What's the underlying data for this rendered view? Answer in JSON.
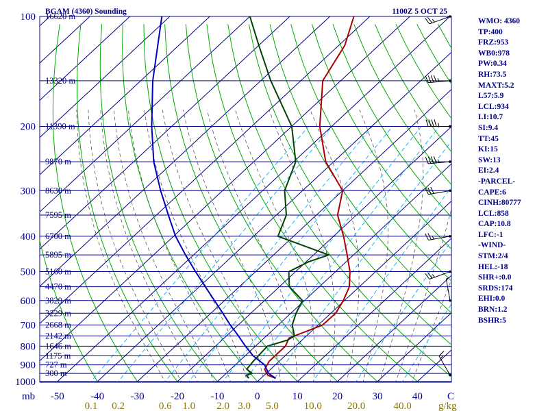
{
  "chart_data": {
    "type": "skew-t log-p sounding",
    "title": "BGAM (4360) Sounding",
    "datetime": "1100Z  5 OCT 25",
    "pressure_axis_unit": "mb",
    "pressure_ticks": [
      100,
      200,
      300,
      400,
      500,
      600,
      700,
      800,
      900,
      1000
    ],
    "temperature_axis_label": "C",
    "temperature_ticks": [
      -50,
      -40,
      -30,
      -20,
      -10,
      0,
      10,
      20,
      30,
      40
    ],
    "mixing_ratio_label": "g/kg",
    "mixing_ratio_ticks": [
      "0.1",
      "0.2",
      "0.6",
      "1.0",
      "2.0",
      "3.0",
      "5.0",
      "10.0",
      "20.0",
      "40.0"
    ],
    "height_levels": [
      {
        "p": 100,
        "label": "16620 m"
      },
      {
        "p": 150,
        "label": "13320 m"
      },
      {
        "p": 200,
        "label": "11390 m"
      },
      {
        "p": 250,
        "label": "9870 m"
      },
      {
        "p": 300,
        "label": "8630 m"
      },
      {
        "p": 350,
        "label": "7595 m"
      },
      {
        "p": 400,
        "label": "6700 m"
      },
      {
        "p": 450,
        "label": "5895 m"
      },
      {
        "p": 500,
        "label": "5160 m"
      },
      {
        "p": 550,
        "label": "4470 m"
      },
      {
        "p": 600,
        "label": "3829 m"
      },
      {
        "p": 650,
        "label": "3229 m"
      },
      {
        "p": 700,
        "label": "2668 m"
      },
      {
        "p": 750,
        "label": "2142 m"
      },
      {
        "p": 800,
        "label": "1646 m"
      },
      {
        "p": 850,
        "label": "1175 m"
      },
      {
        "p": 900,
        "label": "727 m"
      },
      {
        "p": 950,
        "label": "300 m"
      }
    ],
    "series": [
      {
        "name": "temperature",
        "color": "#aa0000",
        "points": [
          [
            980,
            3.7
          ],
          [
            960,
            0.8
          ],
          [
            925,
            -1.5
          ],
          [
            880,
            -2.5
          ],
          [
            800,
            -2.5
          ],
          [
            760,
            -3.8
          ],
          [
            700,
            1.1
          ],
          [
            650,
            1.2
          ],
          [
            600,
            -0.3
          ],
          [
            550,
            -2.5
          ],
          [
            500,
            -6.4
          ],
          [
            450,
            -11.6
          ],
          [
            400,
            -17.5
          ],
          [
            350,
            -24.7
          ],
          [
            300,
            -30.0
          ],
          [
            250,
            -42.0
          ],
          [
            200,
            -53.0
          ],
          [
            150,
            -64.5
          ],
          [
            120,
            -68.5
          ],
          [
            100,
            -74.0
          ]
        ]
      },
      {
        "name": "dewpoint",
        "color": "#004400",
        "points": [
          [
            980,
            -3.0
          ],
          [
            960,
            -4.5
          ],
          [
            950,
            -3.5
          ],
          [
            925,
            -6.0
          ],
          [
            880,
            -6.5
          ],
          [
            800,
            -7.0
          ],
          [
            770,
            -3.6
          ],
          [
            750,
            -3.0
          ],
          [
            700,
            -6.5
          ],
          [
            650,
            -8.7
          ],
          [
            600,
            -10.5
          ],
          [
            550,
            -17.5
          ],
          [
            500,
            -21.7
          ],
          [
            470,
            -19.4
          ],
          [
            450,
            -16.2
          ],
          [
            400,
            -33.9
          ],
          [
            350,
            -37.5
          ],
          [
            300,
            -44.5
          ],
          [
            250,
            -49.5
          ],
          [
            200,
            -60.0
          ],
          [
            150,
            -77.5
          ],
          [
            120,
            -90.0
          ],
          [
            100,
            -100.0
          ]
        ]
      },
      {
        "name": "parcel",
        "color": "#0000bb",
        "points": [
          [
            980,
            3.7
          ],
          [
            950,
            0.6
          ],
          [
            900,
            -2.7
          ],
          [
            850,
            -8.0
          ],
          [
            800,
            -12.5
          ],
          [
            750,
            -17.0
          ],
          [
            700,
            -22.0
          ],
          [
            650,
            -27.0
          ],
          [
            600,
            -32.5
          ],
          [
            550,
            -38.5
          ],
          [
            500,
            -45.0
          ],
          [
            450,
            -52.0
          ],
          [
            400,
            -59.5
          ],
          [
            350,
            -67.0
          ],
          [
            300,
            -75.5
          ],
          [
            250,
            -85.0
          ],
          [
            200,
            -95.0
          ],
          [
            150,
            -107.0
          ],
          [
            100,
            -122.0
          ]
        ]
      }
    ],
    "wind_barbs": [
      {
        "p": 960,
        "dir": 330,
        "spd": 15
      },
      {
        "p": 600,
        "dir": 350,
        "spd": 5
      },
      {
        "p": 500,
        "dir": 250,
        "spd": 25
      },
      {
        "p": 400,
        "dir": 260,
        "spd": 25
      },
      {
        "p": 300,
        "dir": 260,
        "spd": 30
      },
      {
        "p": 250,
        "dir": 265,
        "spd": 45
      },
      {
        "p": 200,
        "dir": 270,
        "spd": 45
      },
      {
        "p": 150,
        "dir": 265,
        "spd": 45
      },
      {
        "p": 100,
        "dir": 250,
        "spd": 25
      }
    ]
  },
  "indices": [
    "WMO: 4360",
    "TP:400",
    "FRZ:953",
    "WB0:978",
    "PW:0.34",
    "RH:73.5",
    "MAXT:5.2",
    "L57:5.9",
    "LCL:934",
    "LI:10.7",
    "SI:9.4",
    "TT:45",
    "KI:15",
    "SW:13",
    "EI:2.4",
    "-PARCEL-",
    "CAPE:6",
    "CINH:80777",
    "LCL:858",
    "CAP:10.8",
    "LFC:-1",
    "-WIND-",
    "STM:2/4",
    "HEL:-18",
    "SHR+:0.0",
    "SRDS:174",
    "EHI:0.0",
    "BRN:1.2",
    "BSHR:5"
  ],
  "colors": {
    "isobar": "#00008b",
    "isotherm": "#000080",
    "dry_adiabat": "#00aa00",
    "moist_adiabat": "#555555",
    "mixing_ratio": "#00aaff",
    "axis_text": "#00008b",
    "mixing_text": "#8b7500"
  }
}
